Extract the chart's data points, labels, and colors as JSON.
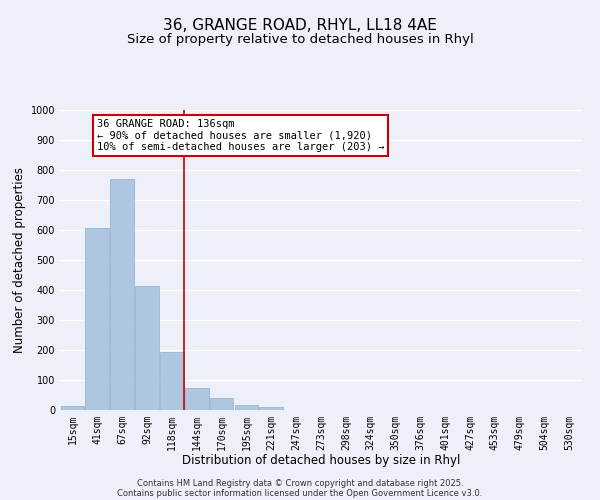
{
  "title": "36, GRANGE ROAD, RHYL, LL18 4AE",
  "subtitle": "Size of property relative to detached houses in Rhyl",
  "xlabel": "Distribution of detached houses by size in Rhyl",
  "ylabel": "Number of detached properties",
  "categories": [
    "15sqm",
    "41sqm",
    "67sqm",
    "92sqm",
    "118sqm",
    "144sqm",
    "170sqm",
    "195sqm",
    "221sqm",
    "247sqm",
    "273sqm",
    "298sqm",
    "324sqm",
    "350sqm",
    "376sqm",
    "401sqm",
    "427sqm",
    "453sqm",
    "479sqm",
    "504sqm",
    "530sqm"
  ],
  "values": [
    15,
    607,
    770,
    413,
    193,
    75,
    40,
    17,
    10,
    0,
    0,
    0,
    0,
    0,
    0,
    0,
    0,
    0,
    0,
    0,
    0
  ],
  "bar_color": "#aec6e0",
  "bar_edge_color": "#8ab0d0",
  "vline_x": 4.5,
  "vline_color": "#cc0000",
  "annotation_box_text": "36 GRANGE ROAD: 136sqm\n← 90% of detached houses are smaller (1,920)\n10% of semi-detached houses are larger (203) →",
  "ylim": [
    0,
    1000
  ],
  "yticks": [
    0,
    100,
    200,
    300,
    400,
    500,
    600,
    700,
    800,
    900,
    1000
  ],
  "background_color": "#edf0f8",
  "grid_color": "#ffffff",
  "footer_line1": "Contains HM Land Registry data © Crown copyright and database right 2025.",
  "footer_line2": "Contains public sector information licensed under the Open Government Licence v3.0.",
  "title_fontsize": 11,
  "subtitle_fontsize": 9.5,
  "axis_label_fontsize": 8.5,
  "tick_fontsize": 7,
  "annotation_fontsize": 7.5,
  "footer_fontsize": 6
}
